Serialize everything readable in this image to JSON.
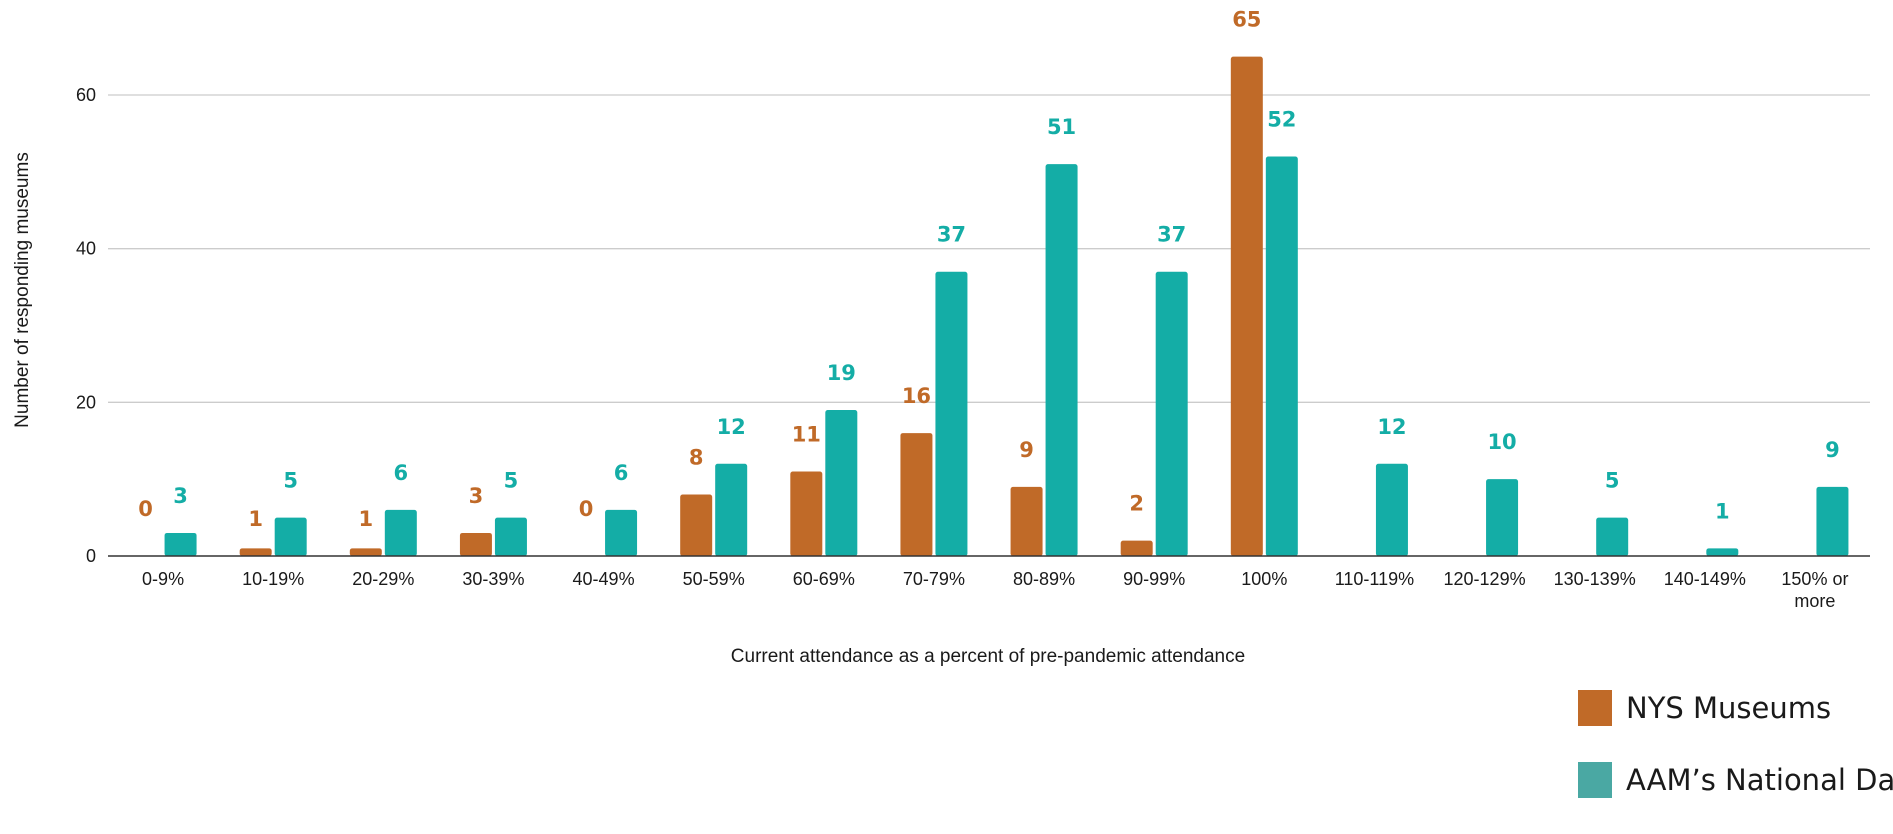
{
  "chart_data": {
    "type": "bar",
    "xlabel": "Current attendance as a percent of pre-pandemic attendance",
    "ylabel": "Number of responding museums",
    "ylim": [
      0,
      60
    ],
    "yticks": [
      "0",
      "20",
      "40",
      "60"
    ],
    "grid": true,
    "legend_position": "bottom-right",
    "categories": [
      "0-9%",
      "10-19%",
      "20-29%",
      "30-39%",
      "40-49%",
      "50-59%",
      "60-69%",
      "70-79%",
      "80-89%",
      "90-99%",
      "100%",
      "110-119%",
      "120-129%",
      "130-139%",
      "140-149%",
      "150% or more"
    ],
    "series": [
      {
        "name": "NYS Museums",
        "color": "#c06a28",
        "values": [
          0,
          1,
          1,
          3,
          0,
          8,
          11,
          16,
          9,
          2,
          65,
          null,
          null,
          null,
          null,
          null
        ]
      },
      {
        "name": "AAM’s National Data",
        "color": "#14ada6",
        "values": [
          3,
          5,
          6,
          5,
          6,
          12,
          19,
          37,
          51,
          37,
          52,
          12,
          10,
          5,
          1,
          9
        ]
      }
    ]
  },
  "legend": {
    "items": [
      {
        "label": "NYS Museums",
        "color": "#c06a28"
      },
      {
        "label": "AAM’s National Data",
        "color": "#4aa8a3"
      }
    ]
  }
}
